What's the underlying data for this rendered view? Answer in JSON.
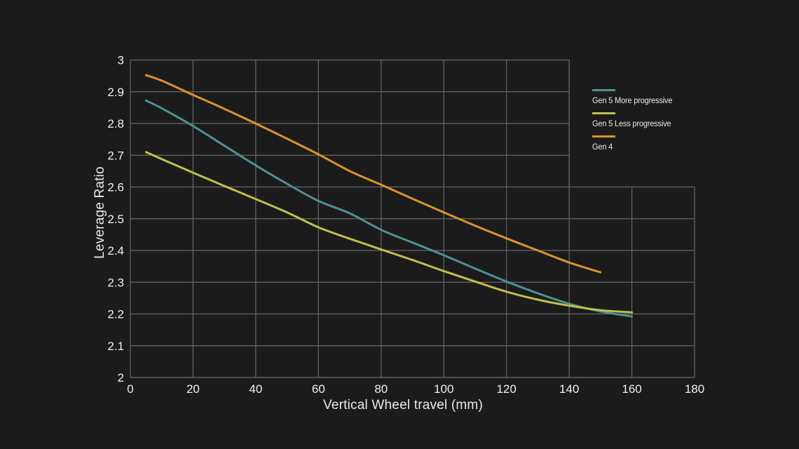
{
  "app": {
    "background": "#1b1b1b",
    "grid_color": "#686868",
    "tick_text_color": "#f0f0f0"
  },
  "chart_data": {
    "type": "line",
    "title": "",
    "xlabel": "Vertical Wheel travel (mm)",
    "ylabel": "Leverage Ratio",
    "xlim": [
      0,
      180
    ],
    "ylim": [
      2,
      3
    ],
    "grid": "on",
    "legend_position": "top-right-outside-grid",
    "grid_cutout_note": "no grid above 2.6 for x greater than 140",
    "grid_cutout": {
      "x_from": 140,
      "y_from": 2.6
    },
    "x_ticks": {
      "values": [
        0,
        20,
        40,
        60,
        80,
        100,
        120,
        140,
        160,
        180
      ],
      "labels": [
        "0",
        "20",
        "40",
        "60",
        "80",
        "100",
        "120",
        "140",
        "160",
        "180"
      ]
    },
    "y_ticks": {
      "values": [
        2,
        2.1,
        2.2,
        2.3,
        2.4,
        2.5,
        2.6,
        2.7,
        2.8,
        2.9,
        3
      ],
      "labels": [
        "2",
        "2.1",
        "2.2",
        "2.3",
        "2.4",
        "2.5",
        "2.6",
        "2.7",
        "2.8",
        "2.9",
        "3"
      ]
    },
    "series": [
      {
        "name": "Gen 5 More progressive",
        "color": "#4e9191",
        "x": [
          5,
          10,
          20,
          30,
          40,
          50,
          60,
          70,
          80,
          90,
          100,
          110,
          120,
          130,
          140,
          150,
          160
        ],
        "values": [
          2.872,
          2.848,
          2.792,
          2.73,
          2.668,
          2.61,
          2.556,
          2.517,
          2.465,
          2.425,
          2.385,
          2.343,
          2.302,
          2.265,
          2.232,
          2.208,
          2.192
        ]
      },
      {
        "name": "Gen 5 Less progressive",
        "color": "#bdc04b",
        "x": [
          5,
          10,
          20,
          30,
          40,
          50,
          60,
          70,
          80,
          90,
          100,
          110,
          120,
          130,
          140,
          150,
          160
        ],
        "values": [
          2.71,
          2.688,
          2.645,
          2.603,
          2.562,
          2.52,
          2.473,
          2.437,
          2.403,
          2.37,
          2.335,
          2.302,
          2.27,
          2.245,
          2.226,
          2.212,
          2.205
        ]
      },
      {
        "name": "Gen 4",
        "color": "#d7942f",
        "x": [
          5,
          10,
          20,
          30,
          40,
          50,
          60,
          70,
          80,
          90,
          100,
          110,
          120,
          130,
          140,
          150
        ],
        "values": [
          2.952,
          2.935,
          2.89,
          2.846,
          2.8,
          2.752,
          2.703,
          2.65,
          2.607,
          2.563,
          2.52,
          2.478,
          2.438,
          2.4,
          2.362,
          2.331
        ]
      }
    ]
  }
}
